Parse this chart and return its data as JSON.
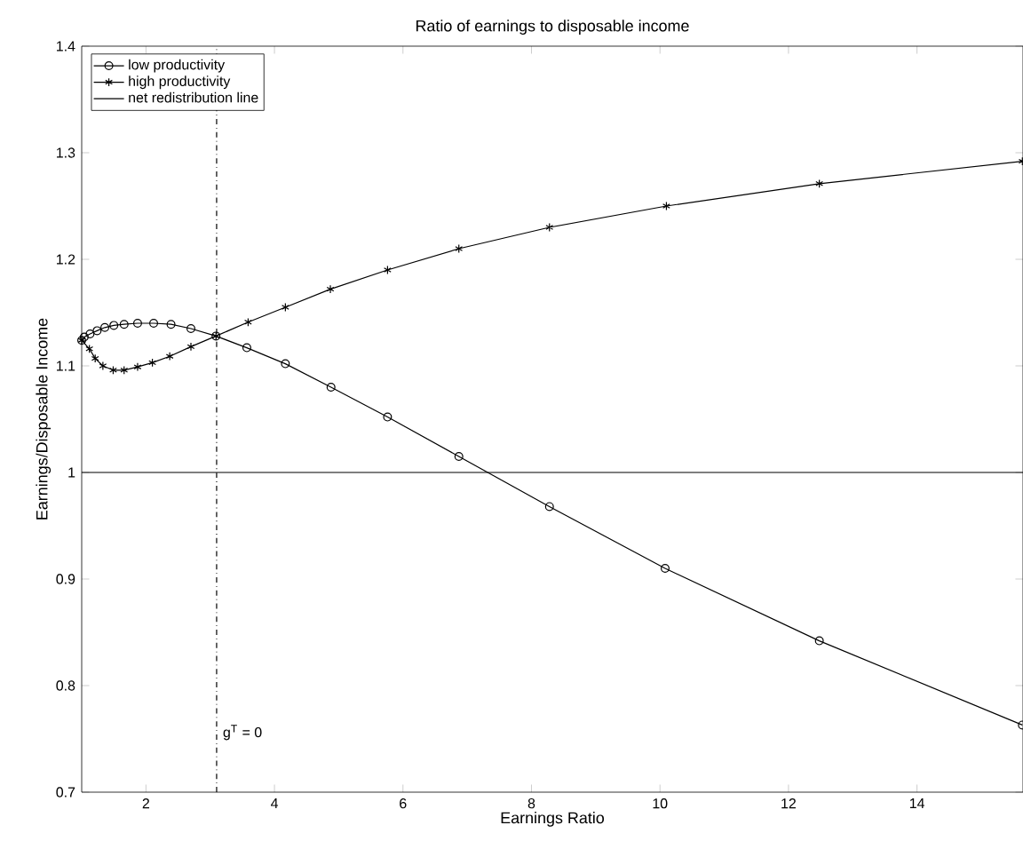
{
  "chart_data": {
    "type": "line",
    "title": "Ratio of earnings to disposable income",
    "xlabel": "Earnings Ratio",
    "ylabel": "Earnings/Disposable Income",
    "xlim": [
      1,
      15.65
    ],
    "ylim": [
      0.7,
      1.4
    ],
    "xticks": [
      2,
      4,
      6,
      8,
      10,
      12,
      14
    ],
    "yticks": [
      0.7,
      0.8,
      0.9,
      1,
      1.1,
      1.2,
      1.3,
      1.4
    ],
    "legend": "top left",
    "grid": false,
    "series": [
      {
        "name": "low productivity",
        "color": "#000000",
        "marker": "circle",
        "x": [
          1.0,
          1.04,
          1.13,
          1.24,
          1.36,
          1.5,
          1.66,
          1.87,
          2.12,
          2.39,
          2.7,
          3.09,
          3.57,
          4.17,
          4.88,
          5.76,
          6.87,
          8.28,
          10.08,
          12.48,
          15.64
        ],
        "values": [
          1.124,
          1.127,
          1.13,
          1.133,
          1.136,
          1.138,
          1.139,
          1.14,
          1.14,
          1.139,
          1.135,
          1.128,
          1.117,
          1.102,
          1.08,
          1.052,
          1.015,
          0.968,
          0.91,
          0.842,
          0.763
        ]
      },
      {
        "name": "high productivity",
        "color": "#000000",
        "marker": "cross",
        "x": [
          1.0,
          1.12,
          1.21,
          1.33,
          1.49,
          1.66,
          1.87,
          2.1,
          2.37,
          2.7,
          3.09,
          3.59,
          4.17,
          4.87,
          5.76,
          6.87,
          8.28,
          10.1,
          12.48,
          15.64
        ],
        "values": [
          1.124,
          1.116,
          1.107,
          1.1,
          1.096,
          1.096,
          1.099,
          1.103,
          1.109,
          1.118,
          1.128,
          1.141,
          1.155,
          1.172,
          1.19,
          1.21,
          1.23,
          1.25,
          1.271,
          1.292
        ]
      }
    ],
    "ref_lines": [
      {
        "axis": "y",
        "value": 1,
        "label": "net redistribution line",
        "color": "#000000",
        "line_style": "solid"
      },
      {
        "axis": "x",
        "value": 3.1,
        "color": "#000000",
        "line_style": "dashdot"
      }
    ],
    "annotations": [
      "g$^{T}$ = 0"
    ]
  }
}
